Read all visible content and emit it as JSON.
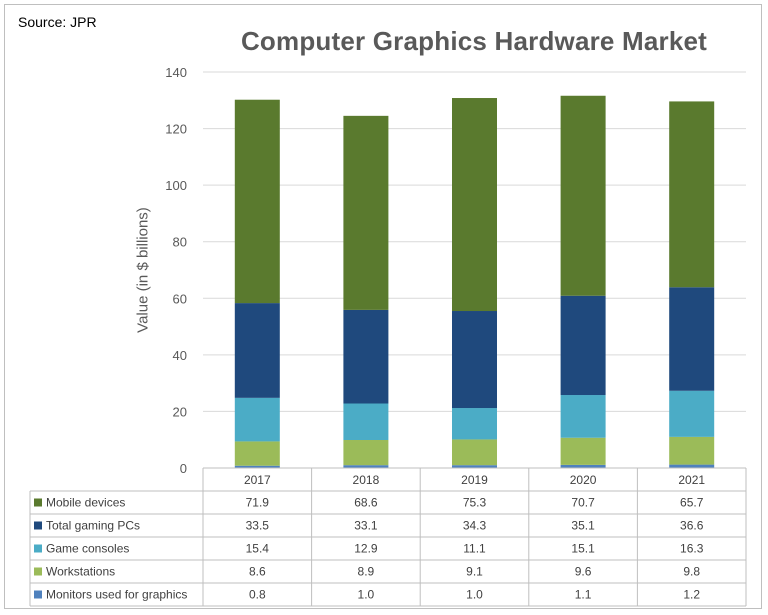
{
  "source": "Source: JPR",
  "chart_data": {
    "type": "bar",
    "stacked": true,
    "title": "Computer Graphics Hardware Market",
    "xlabel": "",
    "ylabel": "Value (in $ billions)",
    "ylim": [
      0,
      140
    ],
    "yticks": [
      0,
      20,
      40,
      60,
      80,
      100,
      120,
      140
    ],
    "grid": true,
    "categories": [
      "2017",
      "2018",
      "2019",
      "2020",
      "2021"
    ],
    "series": [
      {
        "name": "Monitors used for graphics",
        "color": "#4f81bd",
        "values": [
          0.8,
          1.0,
          1.0,
          1.1,
          1.2
        ],
        "labels": [
          "0.8",
          "1.0",
          "1.0",
          "1.1",
          "1.2"
        ]
      },
      {
        "name": "Workstations",
        "color": "#9bbb59",
        "values": [
          8.6,
          8.9,
          9.1,
          9.6,
          9.8
        ],
        "labels": [
          "8.6",
          "8.9",
          "9.1",
          "9.6",
          "9.8"
        ]
      },
      {
        "name": "Game consoles",
        "color": "#4bacc6",
        "values": [
          15.4,
          12.9,
          11.1,
          15.1,
          16.3
        ],
        "labels": [
          "15.4",
          "12.9",
          "11.1",
          "15.1",
          "16.3"
        ]
      },
      {
        "name": "Total gaming PCs",
        "color": "#1f497d",
        "values": [
          33.5,
          33.1,
          34.3,
          35.1,
          36.6
        ],
        "labels": [
          "33.5",
          "33.1",
          "34.3",
          "35.1",
          "36.6"
        ]
      },
      {
        "name": "Mobile devices",
        "color": "#5a7a2e",
        "values": [
          71.9,
          68.6,
          75.3,
          70.7,
          65.7
        ],
        "labels": [
          "71.9",
          "68.6",
          "75.3",
          "70.7",
          "65.7"
        ]
      }
    ],
    "table_row_order": [
      "Mobile devices",
      "Total gaming PCs",
      "Game consoles",
      "Workstations",
      "Monitors used for graphics"
    ]
  }
}
